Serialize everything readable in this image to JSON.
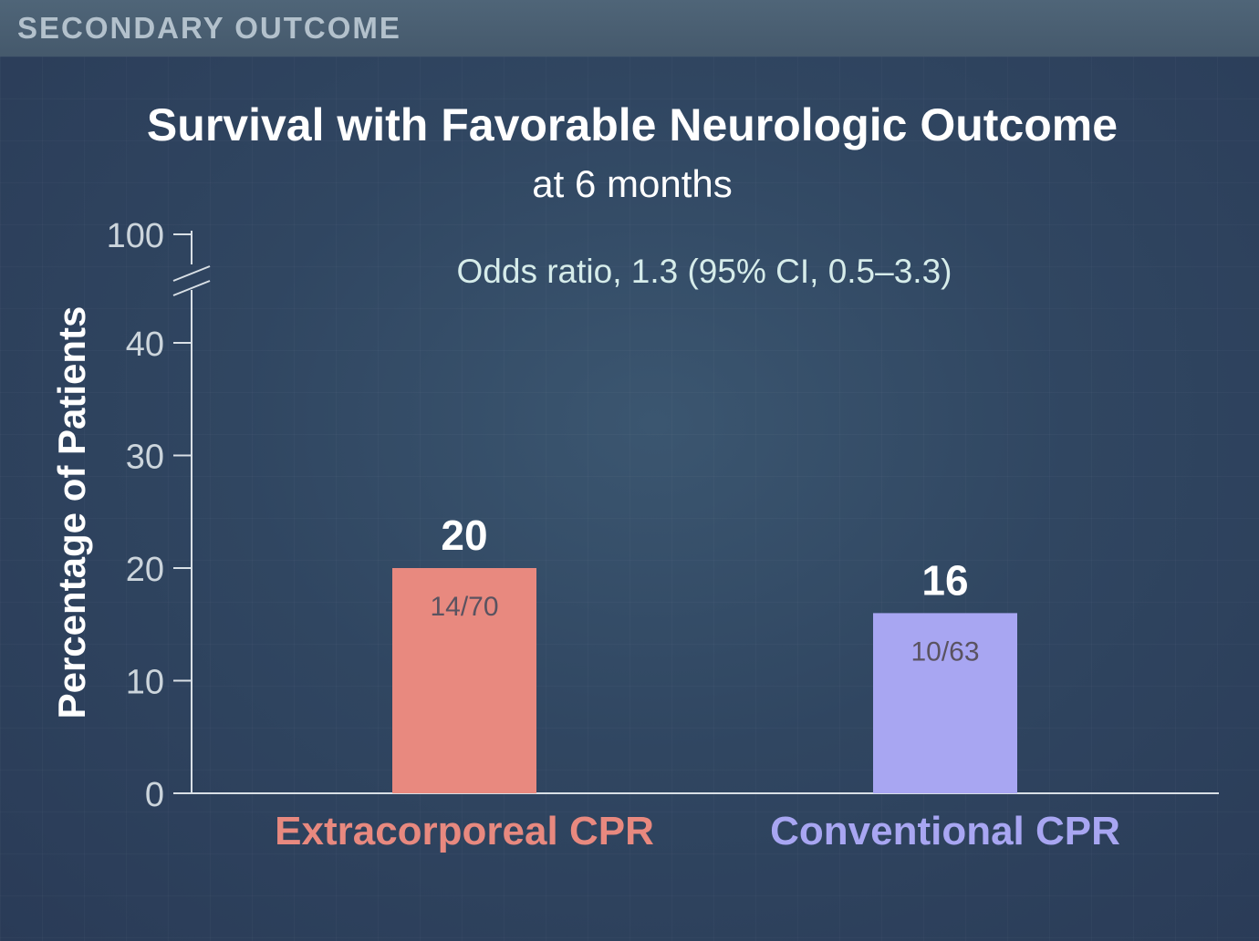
{
  "header": {
    "label": "SECONDARY OUTCOME"
  },
  "chart_data": {
    "type": "bar",
    "title": "Survival with Favorable Neurologic Outcome",
    "subtitle": "at 6 months",
    "annotation": "Odds ratio, 1.3 (95% CI, 0.5–3.3)",
    "ylabel": "Percentage of Patients",
    "xlabel": "",
    "yticks": [
      0,
      10,
      20,
      30,
      40,
      100
    ],
    "axis_break": "between 40 and 100",
    "grid": false,
    "categories": [
      "Extracorporeal CPR",
      "Conventional CPR"
    ],
    "values": [
      20,
      16
    ],
    "value_labels": [
      "20",
      "16"
    ],
    "counts": [
      "14/70",
      "10/63"
    ],
    "colors": [
      "#e8897f",
      "#a8a6f2"
    ]
  }
}
